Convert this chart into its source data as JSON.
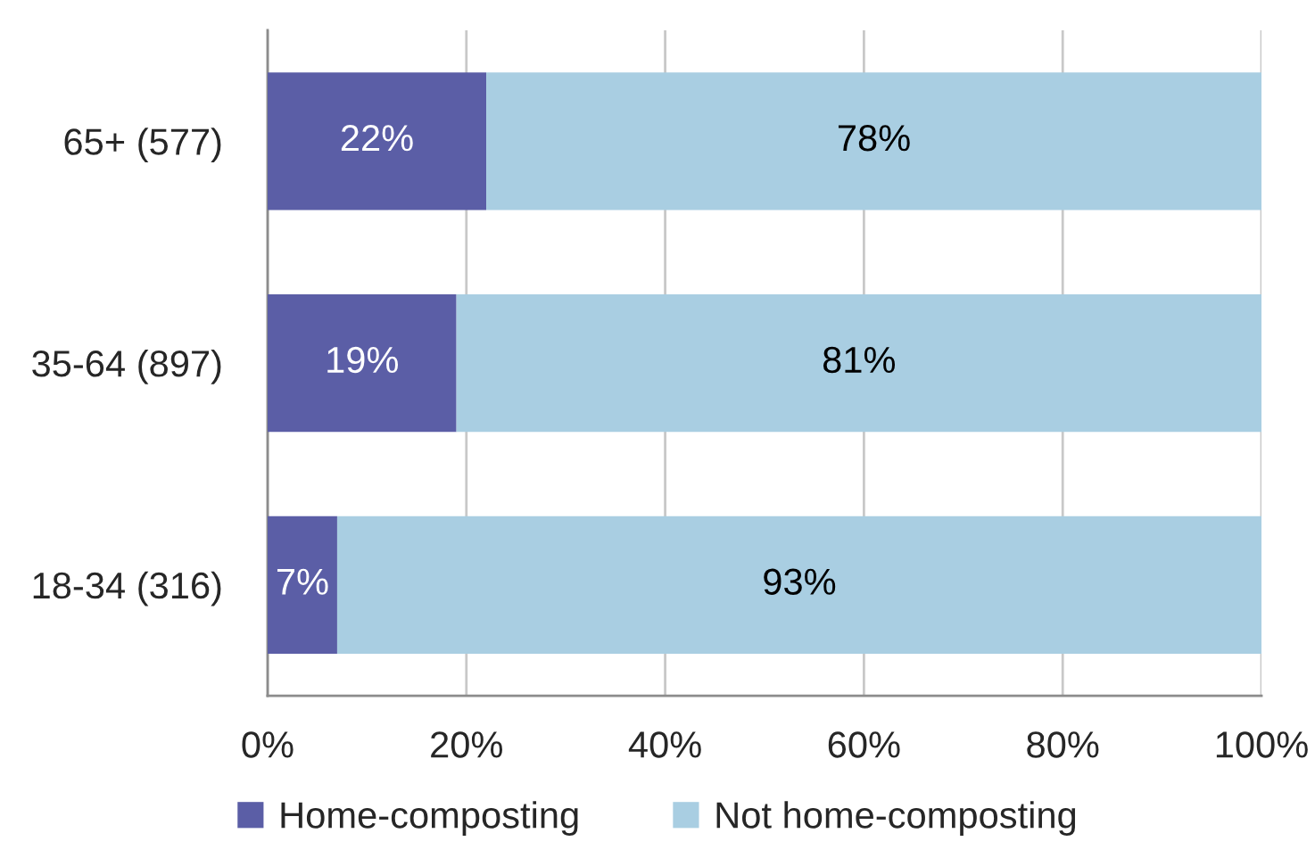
{
  "chart_data": {
    "type": "bar",
    "orientation": "horizontal",
    "stacked": true,
    "categories": [
      "65+ (577)",
      "35-64 (897)",
      "18-34 (316)"
    ],
    "series": [
      {
        "name": "Home-composting",
        "color": "#5b5ea6",
        "values": [
          22,
          19,
          7
        ],
        "value_labels": [
          "22%",
          "19%",
          "7%"
        ]
      },
      {
        "name": "Not home-composting",
        "color": "#a9cee2",
        "values": [
          78,
          81,
          93
        ],
        "value_labels": [
          "78%",
          "81%",
          "93%"
        ]
      }
    ],
    "xlim": [
      0,
      100
    ],
    "xticks": [
      {
        "value": 0,
        "label": "0%"
      },
      {
        "value": 20,
        "label": "20%"
      },
      {
        "value": 40,
        "label": "40%"
      },
      {
        "value": 60,
        "label": "60%"
      },
      {
        "value": 80,
        "label": "80%"
      },
      {
        "value": 100,
        "label": "100%"
      }
    ],
    "grid": "x",
    "legend": "bottom"
  }
}
